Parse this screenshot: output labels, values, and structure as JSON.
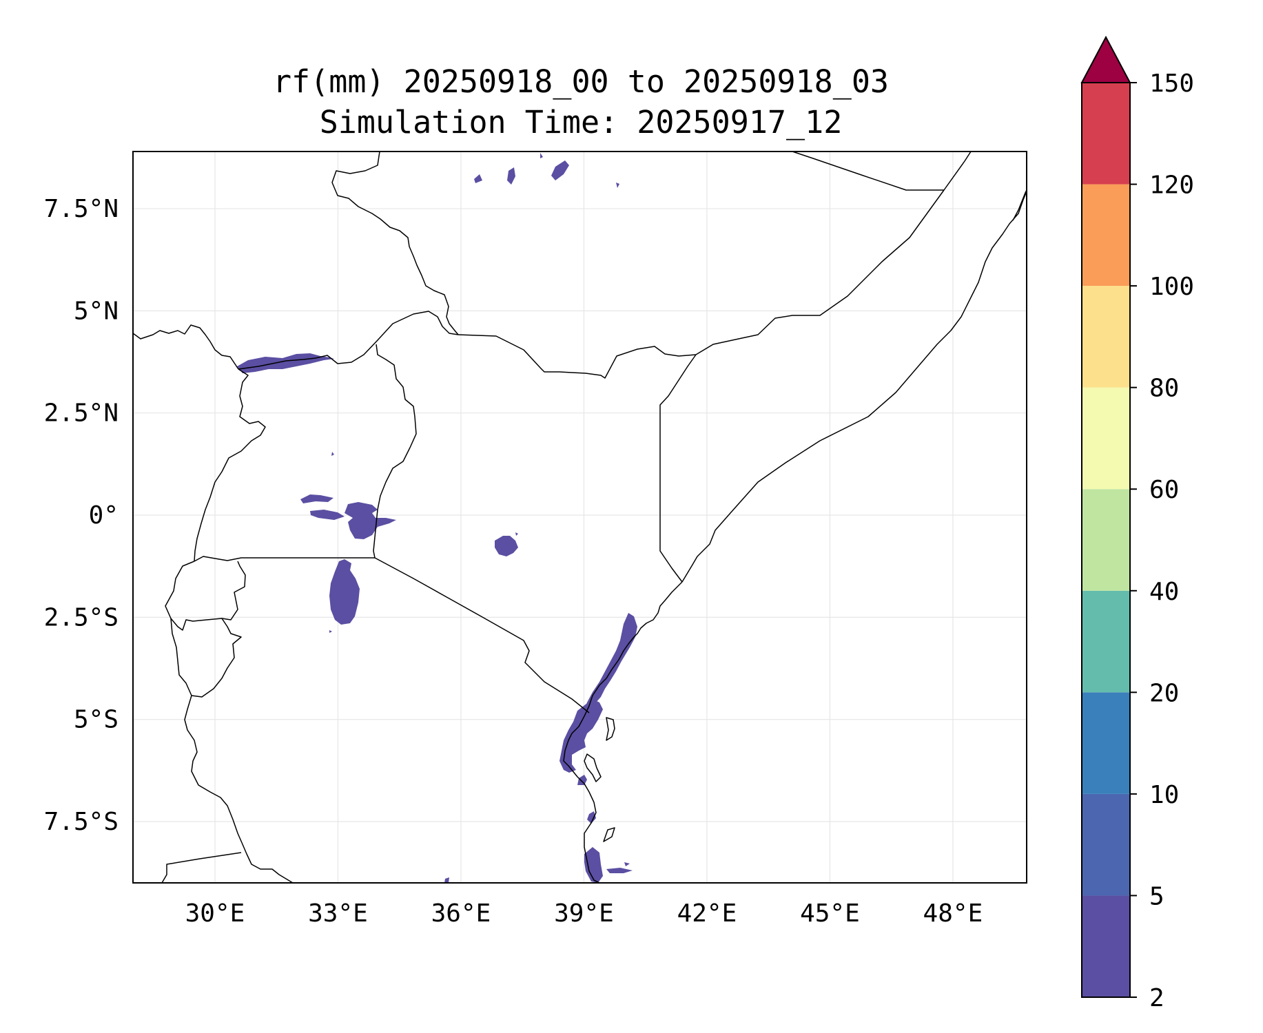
{
  "title": {
    "line1": "rf(mm) 20250918_00 to 20250918_03",
    "line2": "Simulation Time: 20250917_12"
  },
  "map": {
    "projection": "PlateCarree",
    "lon_range": [
      28,
      49.8
    ],
    "lat_range": [
      -9,
      8.9
    ],
    "lon_ticks": [
      {
        "value": 30,
        "label": "30°E"
      },
      {
        "value": 33,
        "label": "33°E"
      },
      {
        "value": 36,
        "label": "36°E"
      },
      {
        "value": 39,
        "label": "39°E"
      },
      {
        "value": 42,
        "label": "42°E"
      },
      {
        "value": 45,
        "label": "45°E"
      },
      {
        "value": 48,
        "label": "48°E"
      }
    ],
    "lat_ticks": [
      {
        "value": 7.5,
        "label": "7.5°N"
      },
      {
        "value": 5,
        "label": "5°N"
      },
      {
        "value": 2.5,
        "label": "2.5°N"
      },
      {
        "value": 0,
        "label": "0°"
      },
      {
        "value": -2.5,
        "label": "2.5°S"
      },
      {
        "value": -5,
        "label": "5°S"
      },
      {
        "value": -7.5,
        "label": "7.5°S"
      }
    ],
    "gridlines": true
  },
  "colorbar": {
    "levels": [
      {
        "value": 2,
        "label": "2"
      },
      {
        "value": 5,
        "label": "5"
      },
      {
        "value": 10,
        "label": "10"
      },
      {
        "value": 20,
        "label": "20"
      },
      {
        "value": 40,
        "label": "40"
      },
      {
        "value": 60,
        "label": "60"
      },
      {
        "value": 80,
        "label": "80"
      },
      {
        "value": 100,
        "label": "100"
      },
      {
        "value": 120,
        "label": "120"
      },
      {
        "value": 150,
        "label": "150"
      }
    ],
    "colors": [
      "#5a4fa2",
      "#4c66b0",
      "#3a80bb",
      "#64bcac",
      "#bfe5a1",
      "#f4faaf",
      "#fce08c",
      "#f99d58",
      "#d63f4f"
    ],
    "extend_color": "#9e0142",
    "extend": "max"
  },
  "rain_color": "#5a4fa2"
}
